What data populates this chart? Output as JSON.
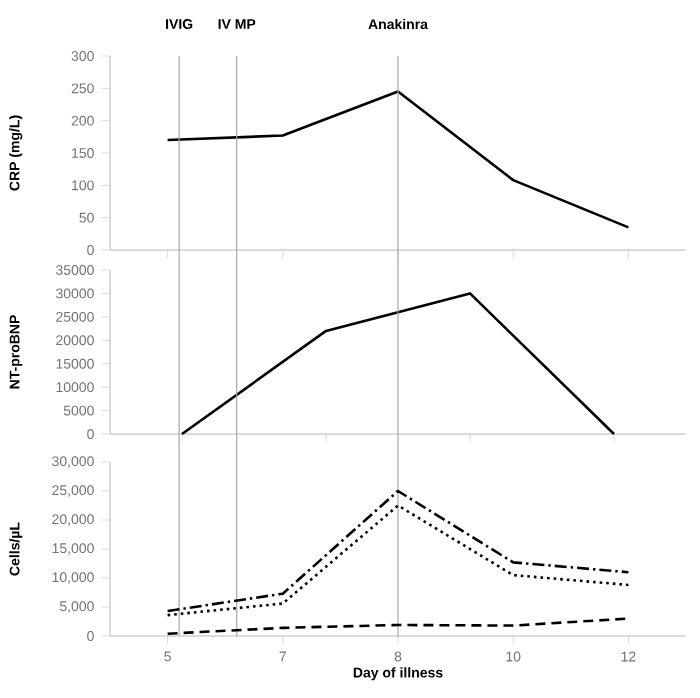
{
  "chart_data": [
    {
      "type": "line",
      "ylabel": "CRP (mg/L)",
      "categories": [
        null,
        null,
        null,
        null,
        null
      ],
      "tick_labels": "y",
      "ylim": [
        0,
        300
      ],
      "yticks": [
        0,
        50,
        100,
        150,
        200,
        250,
        300
      ],
      "series": [
        {
          "color": "#000000",
          "values": [
            170,
            177,
            245,
            108,
            35
          ],
          "line_style": "solid"
        }
      ]
    },
    {
      "type": "line",
      "ylabel": "NT-proBNP",
      "categories": [
        null,
        null,
        null,
        null
      ],
      "tick_labels": "y",
      "ylim": [
        0,
        35000
      ],
      "yticks": [
        0,
        5000,
        10000,
        15000,
        20000,
        25000,
        30000,
        35000
      ],
      "series": [
        {
          "color": "#000000",
          "values": [
            0,
            22000,
            30000,
            0
          ],
          "line_style": "solid"
        }
      ]
    },
    {
      "type": "line",
      "xlabel": "Day of illness",
      "ylabel": "Cells/µL",
      "categories": [
        "5",
        "7",
        "8",
        "10",
        "12"
      ],
      "ylim": [
        0,
        30000
      ],
      "yticks": [
        0,
        {
          "value": 5000,
          "label": "5,000"
        },
        {
          "value": 10000,
          "label": "10,000"
        },
        {
          "value": 15000,
          "label": "15,000"
        },
        {
          "value": 20000,
          "label": "20,000"
        },
        {
          "value": 25000,
          "label": "25,000"
        },
        {
          "value": 30000,
          "label": "30,000"
        }
      ],
      "series": [
        {
          "color": "#000000",
          "values": [
            4300,
            7300,
            25000,
            12700,
            11000
          ],
          "line_style": "dashdot"
        },
        {
          "color": "#000000",
          "values": [
            3600,
            5600,
            22500,
            10500,
            8800
          ],
          "line_style": "dotted"
        },
        {
          "color": "#000000",
          "values": [
            400,
            1400,
            1900,
            1800,
            3000
          ],
          "line_style": "dashed"
        }
      ],
      "annotations": [
        "IVIG",
        "IV MP"
      ],
      "ref_lines": [
        {
          "axis": "x",
          "value": "8",
          "label": "Anakinra",
          "color": "#a6a6a6"
        }
      ]
    }
  ]
}
